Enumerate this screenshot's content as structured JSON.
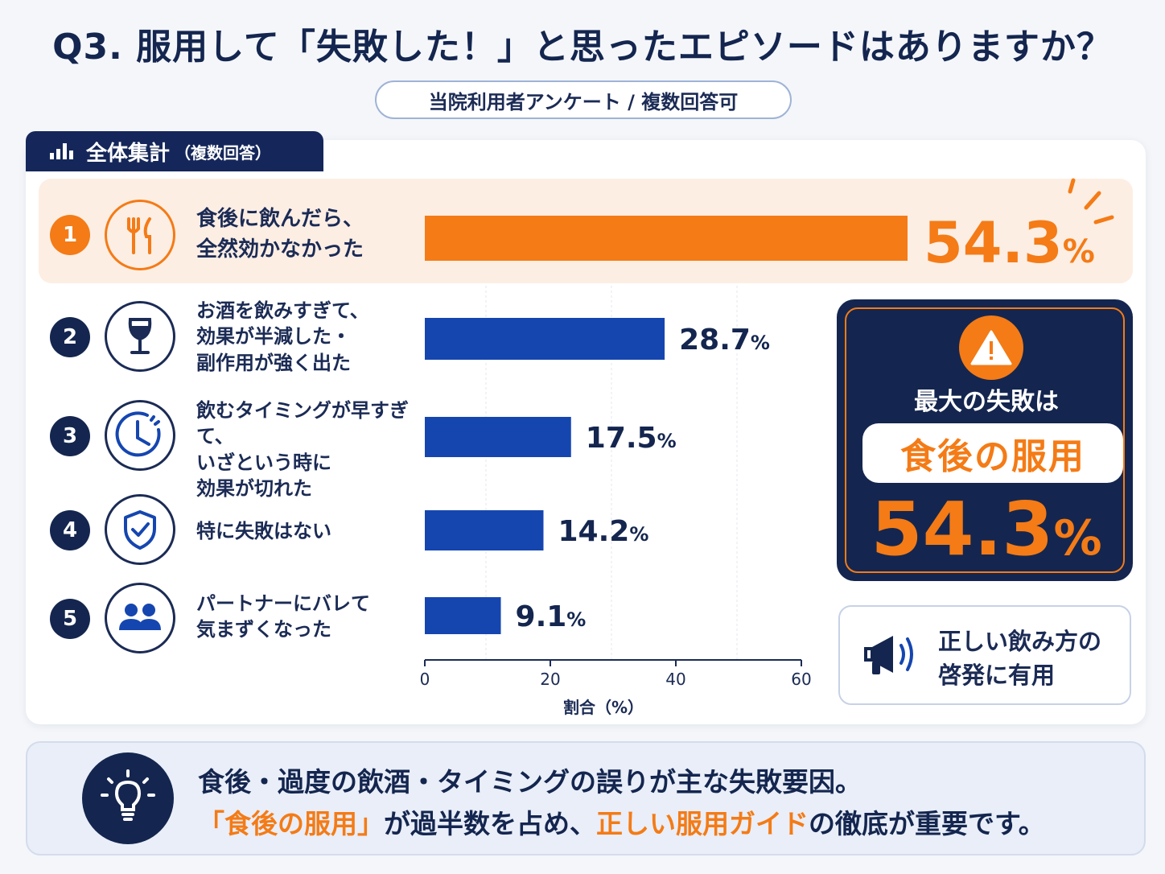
{
  "title": "Q3. 服用して「失敗した！」と思ったエピソードはありますか？",
  "subtitle": "当院利用者アンケート / 複数回答可",
  "section_tab": {
    "title": "全体集計",
    "subtitle": "（複数回答）"
  },
  "rows": [
    {
      "rank": "1",
      "icon": "fork-knife-icon",
      "label": "食後に飲んだら、\n全然効かなかった",
      "value_text": "54.3",
      "unit": "%"
    },
    {
      "rank": "2",
      "icon": "wine-glass-icon",
      "label": "お酒を飲みすぎて、\n効果が半減した・\n副作用が強く出た",
      "value_text": "28.7",
      "unit": "%"
    },
    {
      "rank": "3",
      "icon": "clock-icon",
      "label": "飲むタイミングが早すぎて、\nいざという時に\n効果が切れた",
      "value_text": "17.5",
      "unit": "%"
    },
    {
      "rank": "4",
      "icon": "shield-check-icon",
      "label": "特に失敗はない",
      "value_text": "14.2",
      "unit": "%"
    },
    {
      "rank": "5",
      "icon": "people-icon",
      "label": "パートナーにバレて\n気まずくなった",
      "value_text": "9.1",
      "unit": "%"
    }
  ],
  "chart_data": {
    "type": "bar",
    "orientation": "horizontal",
    "categories": [
      "食後に飲んだら、全然効かなかった",
      "お酒を飲みすぎて、効果が半減した・副作用が強く出た",
      "飲むタイミングが早すぎて、いざという時に効果が切れた",
      "特に失敗はない",
      "パートナーにバレて気まずくなった"
    ],
    "values": [
      54.3,
      28.7,
      17.5,
      14.2,
      9.1
    ],
    "xlabel": "割合（%）",
    "xlim": [
      0,
      60
    ],
    "xticks": [
      "0",
      "20",
      "40",
      "60"
    ],
    "colors": {
      "highlight": "#f47b16",
      "default": "#1546b0"
    },
    "grid": true
  },
  "callout": {
    "lead": "最大の失敗は",
    "highlight": "食後の服用",
    "value": "54.3",
    "unit": "%"
  },
  "note": {
    "text": "正しい飲み方の\n啓発に有用",
    "icon": "megaphone-icon"
  },
  "footer": {
    "icon": "lightbulb-icon",
    "line1": "食後・過度の飲酒・タイミングの誤りが主な失敗要因。",
    "line2_parts": [
      "「食後の服用」",
      "が過半数を占め、",
      "正しい服用ガイド",
      "の徹底が重要です。"
    ]
  },
  "colors": {
    "navy": "#14264f",
    "orange": "#f47b16",
    "bar_blue": "#1546b0",
    "highlight_bg": "#fdeee4"
  }
}
